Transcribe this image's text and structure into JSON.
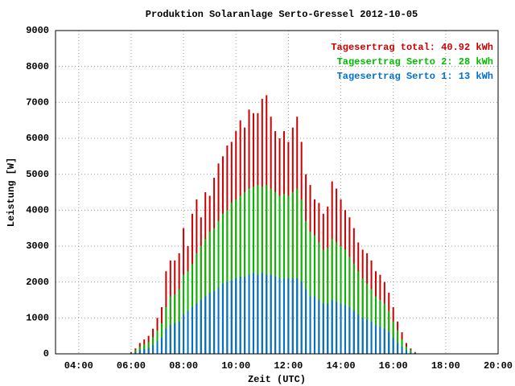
{
  "chart_data": {
    "type": "bar",
    "title": "Produktion Solaranlage Serto-Gressel 2012-10-05",
    "x_label": "Zeit (UTC)",
    "y_label": "Leistung [W]",
    "x": [
      "06:00",
      "06:10",
      "06:20",
      "06:30",
      "06:40",
      "06:50",
      "07:00",
      "07:10",
      "07:20",
      "07:30",
      "07:40",
      "07:50",
      "08:00",
      "08:10",
      "08:20",
      "08:30",
      "08:40",
      "08:50",
      "09:00",
      "09:10",
      "09:20",
      "09:30",
      "09:40",
      "09:50",
      "10:00",
      "10:10",
      "10:20",
      "10:30",
      "10:40",
      "10:50",
      "11:00",
      "11:10",
      "11:20",
      "11:30",
      "11:40",
      "11:50",
      "12:00",
      "12:10",
      "12:20",
      "12:30",
      "12:40",
      "12:50",
      "13:00",
      "13:10",
      "13:20",
      "13:30",
      "13:40",
      "13:50",
      "14:00",
      "14:10",
      "14:20",
      "14:30",
      "14:40",
      "14:50",
      "15:00",
      "15:10",
      "15:20",
      "15:30",
      "15:40",
      "15:50",
      "16:00",
      "16:10",
      "16:20",
      "16:30",
      "16:40",
      "16:50"
    ],
    "series": [
      {
        "name": "Tagesertrag total: 40.92 kWh",
        "color": "#cc0000",
        "values": [
          50,
          150,
          300,
          400,
          500,
          700,
          1000,
          1300,
          2300,
          2600,
          2600,
          2800,
          3500,
          3000,
          3900,
          4300,
          3800,
          4500,
          4400,
          4900,
          5300,
          5500,
          5800,
          5900,
          6200,
          6500,
          6300,
          6800,
          6700,
          6700,
          7100,
          7200,
          6600,
          6200,
          6000,
          6200,
          5900,
          6300,
          6600,
          5900,
          5000,
          4700,
          4300,
          4200,
          3900,
          4100,
          4800,
          4600,
          4300,
          4000,
          3800,
          3500,
          3100,
          2900,
          2800,
          2600,
          2300,
          2200,
          2000,
          1700,
          1300,
          900,
          600,
          300,
          150,
          50
        ]
      },
      {
        "name": "Tagesertrag Serto 2: 28 kWh",
        "color": "#00bb00",
        "values": [
          30,
          100,
          200,
          270,
          330,
          460,
          650,
          850,
          1300,
          1600,
          1650,
          1800,
          2200,
          2300,
          2500,
          2800,
          3000,
          3200,
          3400,
          3500,
          3700,
          3900,
          4000,
          4200,
          4300,
          4400,
          4500,
          4600,
          4650,
          4700,
          4650,
          4700,
          4600,
          4500,
          4400,
          4450,
          4400,
          4500,
          4600,
          4300,
          3700,
          3400,
          3300,
          3100,
          2900,
          2950,
          3200,
          3100,
          3000,
          2900,
          2700,
          2500,
          2300,
          2100,
          1950,
          1800,
          1600,
          1500,
          1400,
          1200,
          900,
          650,
          400,
          200,
          100,
          30
        ]
      },
      {
        "name": "Tagesertrag Serto 1: 13 kWh",
        "color": "#0070d0",
        "values": [
          20,
          50,
          100,
          130,
          170,
          240,
          350,
          450,
          700,
          800,
          850,
          900,
          1100,
          1200,
          1300,
          1400,
          1500,
          1600,
          1700,
          1750,
          1850,
          1950,
          2000,
          2050,
          2100,
          2150,
          2150,
          2200,
          2250,
          2200,
          2250,
          2200,
          2200,
          2150,
          2100,
          2100,
          2100,
          2100,
          2100,
          2000,
          1800,
          1600,
          1600,
          1500,
          1400,
          1400,
          1500,
          1450,
          1400,
          1350,
          1300,
          1200,
          1100,
          1000,
          950,
          900,
          800,
          750,
          700,
          600,
          450,
          300,
          200,
          100,
          50,
          20
        ]
      }
    ],
    "xlim": [
      "03:07",
      "20:00"
    ],
    "xticks": [
      "04:00",
      "06:00",
      "08:00",
      "10:00",
      "12:00",
      "14:00",
      "16:00",
      "18:00",
      "20:00"
    ],
    "ylim": [
      0,
      9000
    ],
    "yticks": [
      0,
      1000,
      2000,
      3000,
      4000,
      5000,
      6000,
      7000,
      8000,
      9000
    ],
    "grid": true,
    "legend": "top-right"
  }
}
